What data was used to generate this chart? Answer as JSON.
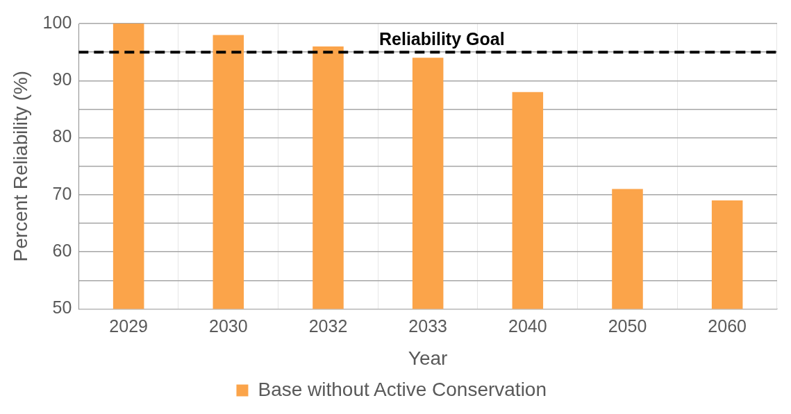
{
  "chart_data": {
    "type": "bar",
    "xlabel": "Year",
    "ylabel": "Percent Reliability (%)",
    "categories": [
      "2029",
      "2030",
      "2032",
      "2033",
      "2040",
      "2050",
      "2060"
    ],
    "series": [
      {
        "name": "Base without Active Conservation",
        "color": "#fba44a",
        "values": [
          100,
          98,
          96,
          94,
          88,
          71,
          69
        ]
      }
    ],
    "ylim": [
      50,
      100
    ],
    "yticks": [
      50,
      {
        "value": 55,
        "label": null
      },
      60,
      {
        "value": 65,
        "label": null
      },
      70,
      {
        "value": 75,
        "label": null
      },
      80,
      {
        "value": 85,
        "label": null
      },
      90,
      {
        "value": 95,
        "label": null
      },
      100
    ],
    "ref_lines": [
      {
        "axis": "y",
        "value": 95,
        "label": "Reliability Goal",
        "color": "#000000",
        "line_style": "dashed"
      }
    ],
    "grid": true,
    "legend": "bottom"
  }
}
